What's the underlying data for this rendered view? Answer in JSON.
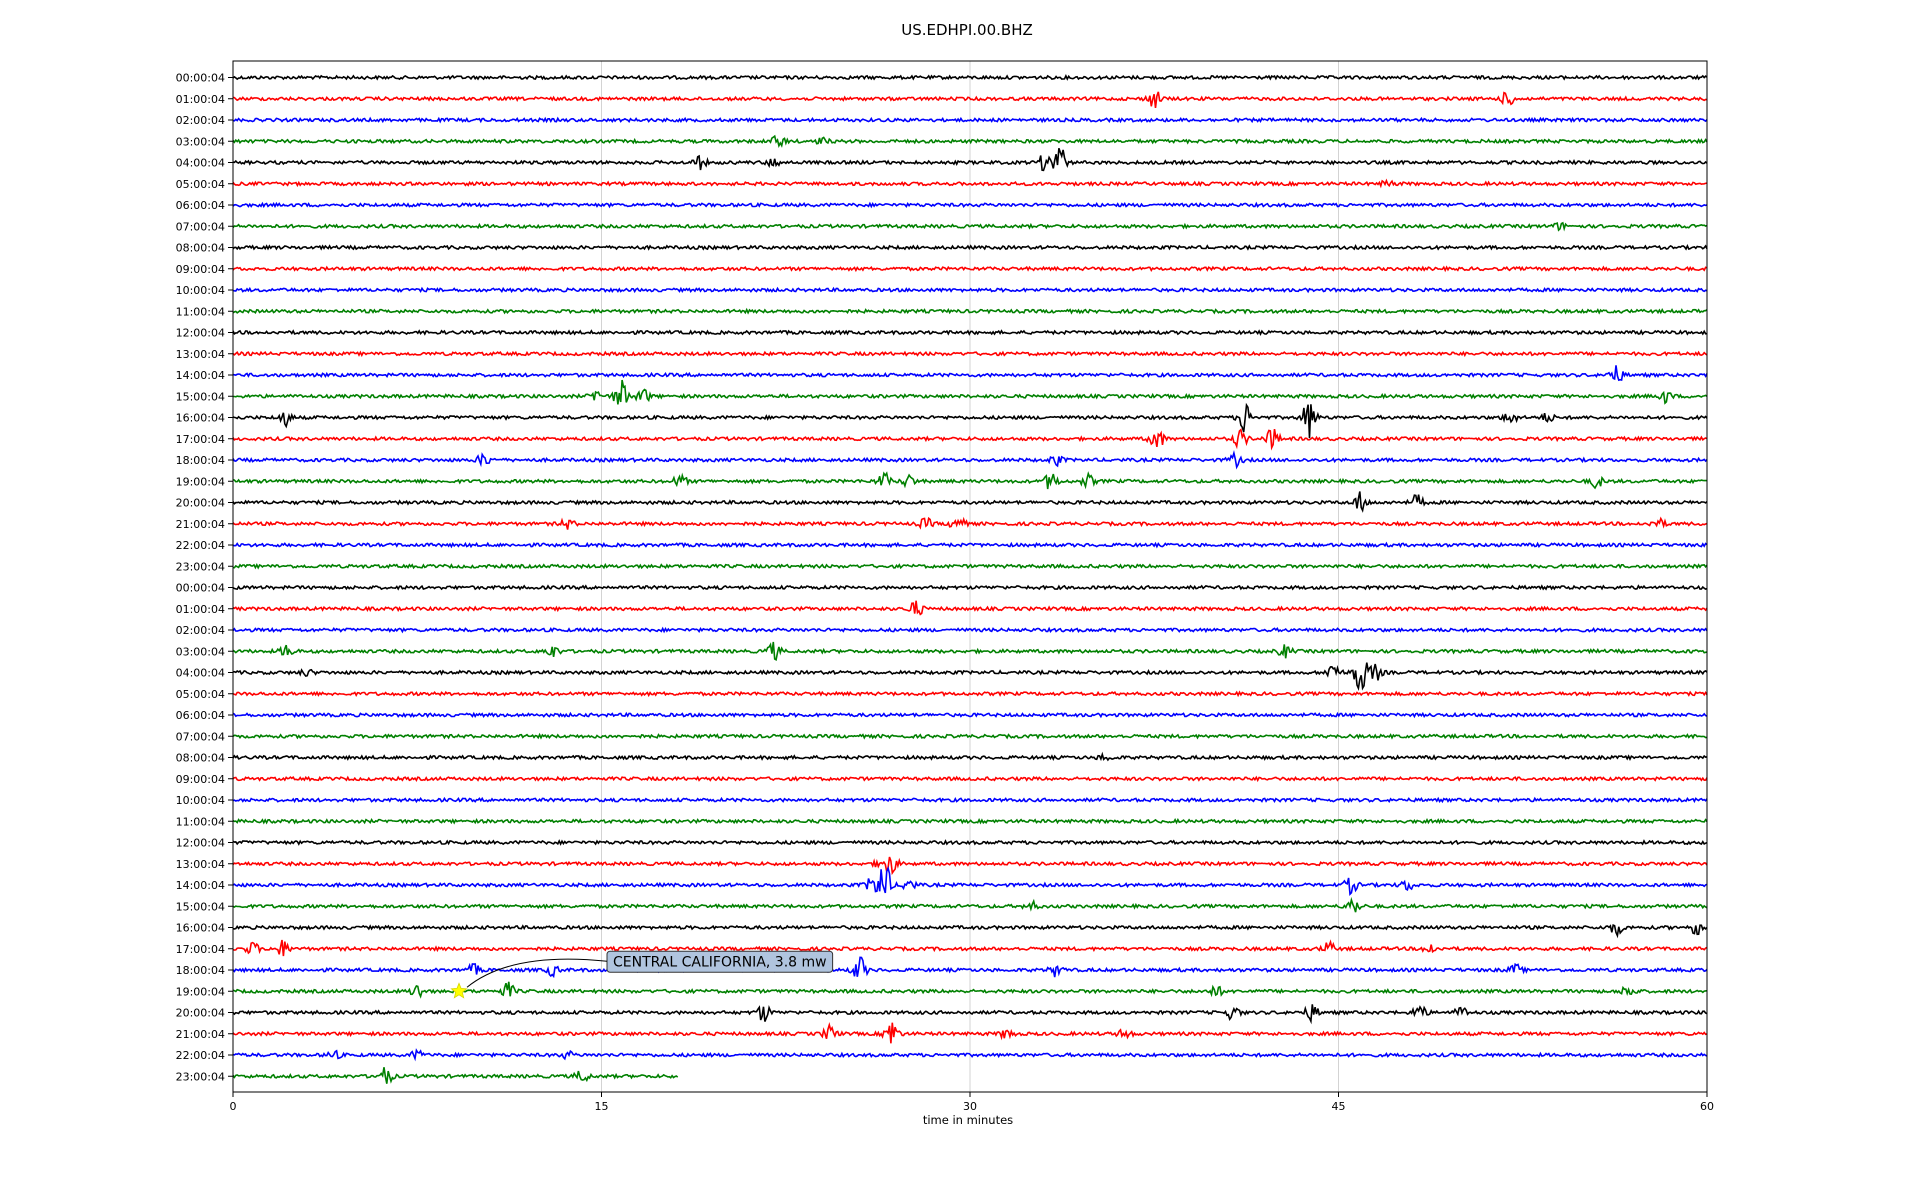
{
  "chart_data": {
    "type": "line",
    "title": "US.EDHPI.00.BHZ",
    "xlabel": "time in minutes",
    "ylabel": "",
    "xlim": [
      0,
      60
    ],
    "x_ticks": [
      0,
      15,
      30,
      45,
      60
    ],
    "grid": "vertical lines at 15, 30, 45",
    "color_cycle": [
      "#000000",
      "#ff0000",
      "#0000ff",
      "#008000"
    ],
    "rows": [
      {
        "label": "00:00:04",
        "events": []
      },
      {
        "label": "01:00:04",
        "events": [
          [
            37.5,
            0.9
          ],
          [
            51.9,
            0.7
          ]
        ]
      },
      {
        "label": "02:00:04",
        "events": []
      },
      {
        "label": "03:00:04",
        "events": [
          [
            22.2,
            0.6
          ],
          [
            24.0,
            0.3
          ]
        ]
      },
      {
        "label": "04:00:04",
        "events": [
          [
            19.0,
            0.6
          ],
          [
            22.0,
            0.4
          ],
          [
            33.6,
            2.2
          ],
          [
            33.0,
            0.7
          ]
        ]
      },
      {
        "label": "05:00:04",
        "events": [
          [
            47.0,
            0.3
          ]
        ]
      },
      {
        "label": "06:00:04",
        "events": []
      },
      {
        "label": "07:00:04",
        "events": [
          [
            54.0,
            0.3
          ]
        ]
      },
      {
        "label": "08:00:04",
        "events": []
      },
      {
        "label": "09:00:04",
        "events": []
      },
      {
        "label": "10:00:04",
        "events": []
      },
      {
        "label": "11:00:04",
        "events": []
      },
      {
        "label": "12:00:04",
        "events": []
      },
      {
        "label": "13:00:04",
        "events": []
      },
      {
        "label": "14:00:04",
        "events": [
          [
            56.3,
            0.9
          ]
        ]
      },
      {
        "label": "15:00:04",
        "events": [
          [
            15.8,
            1.6
          ],
          [
            14.8,
            0.6
          ],
          [
            16.7,
            0.7
          ],
          [
            58.3,
            0.6
          ]
        ]
      },
      {
        "label": "16:00:04",
        "events": [
          [
            2.1,
            0.8
          ],
          [
            41.2,
            1.6
          ],
          [
            43.8,
            2.0
          ],
          [
            52.0,
            0.6
          ],
          [
            53.5,
            0.4
          ]
        ]
      },
      {
        "label": "17:00:04",
        "events": [
          [
            37.6,
            1.2
          ],
          [
            41.0,
            0.9
          ],
          [
            42.3,
            1.0
          ]
        ]
      },
      {
        "label": "18:00:04",
        "events": [
          [
            10.2,
            0.6
          ],
          [
            33.5,
            0.5
          ],
          [
            40.8,
            0.6
          ]
        ]
      },
      {
        "label": "19:00:04",
        "events": [
          [
            18.2,
            0.6
          ],
          [
            26.5,
            0.8
          ],
          [
            27.5,
            0.6
          ],
          [
            33.3,
            0.9
          ],
          [
            34.8,
            0.6
          ],
          [
            55.5,
            0.6
          ]
        ]
      },
      {
        "label": "20:00:04",
        "events": [
          [
            45.9,
            1.0
          ],
          [
            48.2,
            0.7
          ]
        ]
      },
      {
        "label": "21:00:04",
        "events": [
          [
            13.6,
            0.5
          ],
          [
            29.5,
            0.9
          ],
          [
            28.2,
            0.5
          ],
          [
            58.0,
            0.5
          ]
        ]
      },
      {
        "label": "22:00:04",
        "events": []
      },
      {
        "label": "23:00:04",
        "events": []
      },
      {
        "label": "00:00:04",
        "events": []
      },
      {
        "label": "01:00:04",
        "events": [
          [
            27.8,
            0.8
          ]
        ]
      },
      {
        "label": "02:00:04",
        "events": []
      },
      {
        "label": "03:00:04",
        "events": [
          [
            2.2,
            0.6
          ],
          [
            13.0,
            0.6
          ],
          [
            22.0,
            0.9
          ],
          [
            42.8,
            0.6
          ]
        ]
      },
      {
        "label": "04:00:04",
        "events": [
          [
            45.9,
            2.2
          ],
          [
            44.8,
            1.0
          ],
          [
            46.5,
            0.8
          ],
          [
            3.0,
            0.3
          ]
        ]
      },
      {
        "label": "05:00:04",
        "events": []
      },
      {
        "label": "06:00:04",
        "events": []
      },
      {
        "label": "07:00:04",
        "events": []
      },
      {
        "label": "08:00:04",
        "events": [
          [
            35.5,
            0.3
          ]
        ]
      },
      {
        "label": "09:00:04",
        "events": []
      },
      {
        "label": "10:00:04",
        "events": []
      },
      {
        "label": "11:00:04",
        "events": []
      },
      {
        "label": "12:00:04",
        "events": []
      },
      {
        "label": "13:00:04",
        "events": [
          [
            26.4,
            0.5
          ],
          [
            26.8,
            0.9
          ]
        ]
      },
      {
        "label": "14:00:04",
        "events": [
          [
            26.5,
            2.4
          ],
          [
            26.0,
            0.7
          ],
          [
            27.5,
            0.6
          ],
          [
            45.5,
            0.8
          ],
          [
            47.8,
            0.5
          ]
        ]
      },
      {
        "label": "15:00:04",
        "events": [
          [
            45.6,
            0.8
          ],
          [
            32.5,
            0.4
          ]
        ]
      },
      {
        "label": "16:00:04",
        "events": [
          [
            56.3,
            0.7
          ],
          [
            59.6,
            0.7
          ]
        ]
      },
      {
        "label": "17:00:04",
        "events": [
          [
            2.0,
            0.8
          ],
          [
            0.8,
            0.6
          ],
          [
            44.6,
            0.6
          ],
          [
            48.7,
            0.5
          ]
        ]
      },
      {
        "label": "18:00:04",
        "events": [
          [
            25.5,
            1.3
          ],
          [
            13.0,
            0.5
          ],
          [
            33.5,
            0.6
          ],
          [
            52.2,
            0.5
          ],
          [
            9.8,
            0.5
          ]
        ]
      },
      {
        "label": "19:00:04",
        "events": [
          [
            7.5,
            0.7
          ],
          [
            11.2,
            0.8
          ],
          [
            40.0,
            0.5
          ],
          [
            56.8,
            0.6
          ]
        ]
      },
      {
        "label": "20:00:04",
        "events": [
          [
            21.6,
            0.9
          ],
          [
            40.7,
            0.7
          ],
          [
            43.9,
            0.8
          ],
          [
            48.3,
            0.8
          ],
          [
            50.0,
            0.5
          ]
        ]
      },
      {
        "label": "21:00:04",
        "events": [
          [
            26.8,
            1.5
          ],
          [
            24.3,
            0.8
          ],
          [
            31.5,
            0.5
          ],
          [
            36.3,
            0.5
          ]
        ]
      },
      {
        "label": "22:00:04",
        "events": [
          [
            7.5,
            0.4
          ],
          [
            4.1,
            0.4
          ],
          [
            13.6,
            0.3
          ]
        ]
      },
      {
        "label": "23:00:04",
        "events": [
          [
            6.2,
            0.9
          ],
          [
            14.2,
            0.6
          ]
        ],
        "x_end": 18.1
      }
    ],
    "annotations": [
      {
        "text": "CENTRAL CALIFORNIA, 3.8 mw",
        "row": 43,
        "x": 9.2,
        "marker": "star",
        "marker_color": "#ffff00"
      }
    ]
  }
}
